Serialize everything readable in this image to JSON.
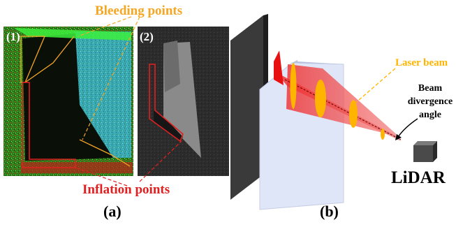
{
  "panel_a": {
    "label": "(a)",
    "sub1_label": "(1)",
    "sub2_label": "(2)",
    "bleeding_label": "Bleeding points",
    "inflation_label": "Inflation points"
  },
  "panel_b": {
    "label": "(b)",
    "laser_label": "Laser beam",
    "divergence_line1": "Beam",
    "divergence_line2": "divergence",
    "divergence_line3": "angle",
    "lidar_label": "LiDAR"
  },
  "colors": {
    "bleeding": "#f5a623",
    "inflation": "#e02020",
    "laser": "#ffb400",
    "beam_fill": "#f23a3a",
    "front_panel": "#dfe6f7",
    "back_panel": "#3a3a3a"
  }
}
